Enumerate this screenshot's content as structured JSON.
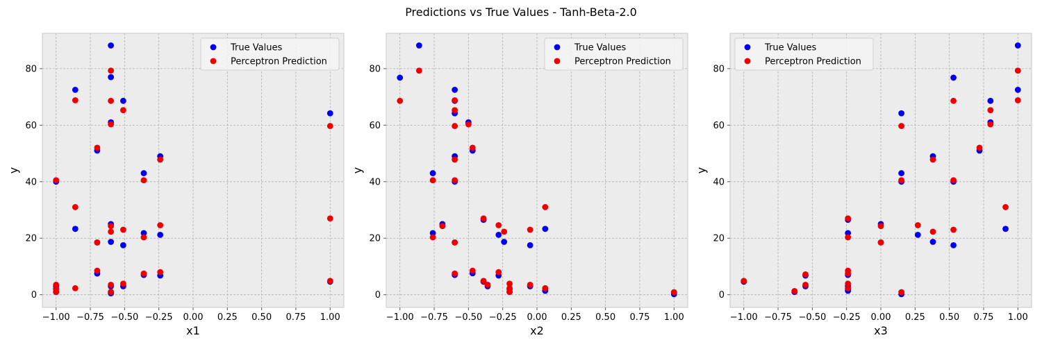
{
  "suptitle": "Predictions vs True Values - Tanh-Beta-2.0",
  "colors": {
    "true": "#0000ee",
    "pred": "#ee0000",
    "plot_bg": "#ececec",
    "grid": "#b0b0b0"
  },
  "chart_data": [
    {
      "type": "scatter",
      "title": "",
      "xlabel": "x1",
      "ylabel": "y",
      "xlim": [
        -1.1,
        1.1
      ],
      "ylim": [
        -4.5,
        92.5
      ],
      "xticks": [
        -1.0,
        -0.75,
        -0.5,
        -0.25,
        0.0,
        0.25,
        0.5,
        0.75,
        1.0
      ],
      "xtick_labels": [
        "−1.00",
        "−0.75",
        "−0.50",
        "−0.25",
        "0.00",
        "0.25",
        "0.50",
        "0.75",
        "1.00"
      ],
      "yticks": [
        0,
        20,
        40,
        60,
        80
      ],
      "ytick_labels": [
        "0",
        "20",
        "40",
        "60",
        "80"
      ],
      "legend_position": "top-right",
      "series": [
        {
          "name": "True Values",
          "color": "#0000ee",
          "x": [
            -1.0,
            -1.0,
            -1.0,
            -1.0,
            -0.86,
            -0.86,
            -0.7,
            -0.7,
            -0.7,
            -0.6,
            -0.6,
            -0.6,
            -0.6,
            -0.6,
            -0.6,
            -0.6,
            -0.6,
            -0.51,
            -0.51,
            -0.51,
            -0.36,
            -0.36,
            -0.36,
            -0.24,
            -0.24,
            -0.24,
            1.0,
            1.0
          ],
          "y": [
            40,
            2,
            1,
            3,
            72.5,
            23.3,
            51,
            18.5,
            7.5,
            88.2,
            77,
            61,
            25,
            18.7,
            3,
            0.5,
            1,
            68.6,
            17.5,
            3,
            43,
            21.8,
            7,
            49,
            21.2,
            6.8,
            64.2,
            4.6
          ]
        },
        {
          "name": "Perceptron Prediction",
          "color": "#ee0000",
          "x": [
            -1.0,
            -1.0,
            -1.0,
            -1.0,
            -0.86,
            -0.86,
            -0.86,
            -0.7,
            -0.7,
            -0.7,
            -0.6,
            -0.6,
            -0.6,
            -0.6,
            -0.6,
            -0.6,
            -0.6,
            -0.51,
            -0.51,
            -0.51,
            -0.36,
            -0.36,
            -0.36,
            -0.24,
            -0.24,
            -0.24,
            1.0,
            1.0,
            1.0
          ],
          "y": [
            40.5,
            3.5,
            2,
            1,
            68.8,
            31,
            2.3,
            52,
            18.5,
            8.5,
            79.3,
            68.6,
            60.3,
            24.3,
            22.3,
            3.5,
            1,
            65.3,
            23,
            3.9,
            40.5,
            20.3,
            7.5,
            47.8,
            24.6,
            8,
            59.7,
            27,
            4.9
          ]
        }
      ]
    },
    {
      "type": "scatter",
      "title": "",
      "xlabel": "x2",
      "ylabel": "y",
      "xlim": [
        -1.1,
        1.1
      ],
      "ylim": [
        -4.5,
        92.5
      ],
      "xticks": [
        -1.0,
        -0.75,
        -0.5,
        -0.25,
        0.0,
        0.25,
        0.5,
        0.75,
        1.0
      ],
      "xtick_labels": [
        "−1.00",
        "−0.75",
        "−0.50",
        "−0.25",
        "0.00",
        "0.25",
        "0.50",
        "0.75",
        "1.00"
      ],
      "yticks": [
        0,
        20,
        40,
        60,
        80
      ],
      "ytick_labels": [
        "0",
        "20",
        "40",
        "60",
        "80"
      ],
      "legend_position": "top-right",
      "series": [
        {
          "name": "True Values",
          "color": "#0000ee",
          "x": [
            -1.0,
            -0.86,
            -0.76,
            -0.76,
            -0.69,
            -0.6,
            -0.6,
            -0.6,
            -0.6,
            -0.6,
            -0.6,
            -0.6,
            -0.5,
            -0.47,
            -0.47,
            -0.39,
            -0.39,
            -0.36,
            -0.28,
            -0.28,
            -0.24,
            -0.2,
            -0.2,
            -0.05,
            -0.05,
            0.06,
            0.06,
            1.0
          ],
          "y": [
            76.8,
            88.2,
            43,
            21.8,
            25,
            72.5,
            68.6,
            64.2,
            49,
            40,
            18.5,
            7,
            61,
            51,
            7.6,
            26.5,
            4.6,
            3,
            21.2,
            6.8,
            18.7,
            2,
            1,
            17.5,
            3,
            23.3,
            1.4,
            0.2
          ]
        },
        {
          "name": "Perceptron Prediction",
          "color": "#ee0000",
          "x": [
            -1.0,
            -0.86,
            -0.76,
            -0.76,
            -0.69,
            -0.6,
            -0.6,
            -0.6,
            -0.6,
            -0.6,
            -0.6,
            -0.6,
            -0.5,
            -0.47,
            -0.47,
            -0.39,
            -0.39,
            -0.36,
            -0.28,
            -0.28,
            -0.24,
            -0.2,
            -0.2,
            -0.2,
            -0.05,
            -0.05,
            0.06,
            0.06,
            1.0
          ],
          "y": [
            68.6,
            79.3,
            40.5,
            20.3,
            24.3,
            68.8,
            65.3,
            59.7,
            47.8,
            40.5,
            18.5,
            7.5,
            60.3,
            52,
            8.5,
            27,
            4.9,
            3.5,
            24.6,
            8,
            22.3,
            3.9,
            2.3,
            1,
            23,
            3.5,
            31,
            2.3,
            0.9
          ]
        }
      ]
    },
    {
      "type": "scatter",
      "title": "",
      "xlabel": "x3",
      "ylabel": "y",
      "xlim": [
        -1.1,
        1.1
      ],
      "ylim": [
        -4.5,
        92.5
      ],
      "xticks": [
        -1.0,
        -0.75,
        -0.5,
        -0.25,
        0.0,
        0.25,
        0.5,
        0.75,
        1.0
      ],
      "xtick_labels": [
        "−1.00",
        "−0.75",
        "−0.50",
        "−0.25",
        "0.00",
        "0.25",
        "0.50",
        "0.75",
        "1.00"
      ],
      "yticks": [
        0,
        20,
        40,
        60,
        80
      ],
      "ytick_labels": [
        "0",
        "20",
        "40",
        "60",
        "80"
      ],
      "legend_position": "top-left",
      "series": [
        {
          "name": "True Values",
          "color": "#0000ee",
          "x": [
            -1.0,
            -0.63,
            -0.55,
            -0.55,
            -0.24,
            -0.24,
            -0.24,
            -0.24,
            -0.24,
            -0.24,
            0.0,
            0.0,
            0.15,
            0.15,
            0.15,
            0.15,
            0.27,
            0.38,
            0.38,
            0.53,
            0.53,
            0.53,
            0.72,
            0.8,
            0.8,
            0.91,
            1.0,
            1.0
          ],
          "y": [
            4.6,
            1,
            3,
            6.8,
            26.5,
            21.8,
            7,
            3,
            2,
            1.4,
            25,
            18.5,
            64.2,
            43,
            40,
            0.2,
            21.2,
            49,
            18.7,
            76.8,
            40,
            17.5,
            51,
            68.6,
            61,
            23.3,
            88.2,
            72.5
          ]
        },
        {
          "name": "Perceptron Prediction",
          "color": "#ee0000",
          "x": [
            -1.0,
            -0.63,
            -0.55,
            -0.55,
            -0.24,
            -0.24,
            -0.24,
            -0.24,
            -0.24,
            -0.24,
            0.0,
            0.0,
            0.15,
            0.15,
            0.15,
            0.27,
            0.38,
            0.38,
            0.53,
            0.53,
            0.53,
            0.72,
            0.8,
            0.8,
            0.91,
            1.0,
            1.0
          ],
          "y": [
            4.9,
            1.3,
            3.5,
            7.2,
            27,
            20.3,
            8.5,
            7.5,
            3.9,
            2.3,
            24.3,
            18.5,
            59.7,
            40.5,
            0.9,
            24.6,
            47.8,
            22.3,
            68.6,
            40.5,
            23,
            52,
            65.3,
            60.3,
            31,
            79.3,
            68.8
          ]
        }
      ]
    }
  ]
}
